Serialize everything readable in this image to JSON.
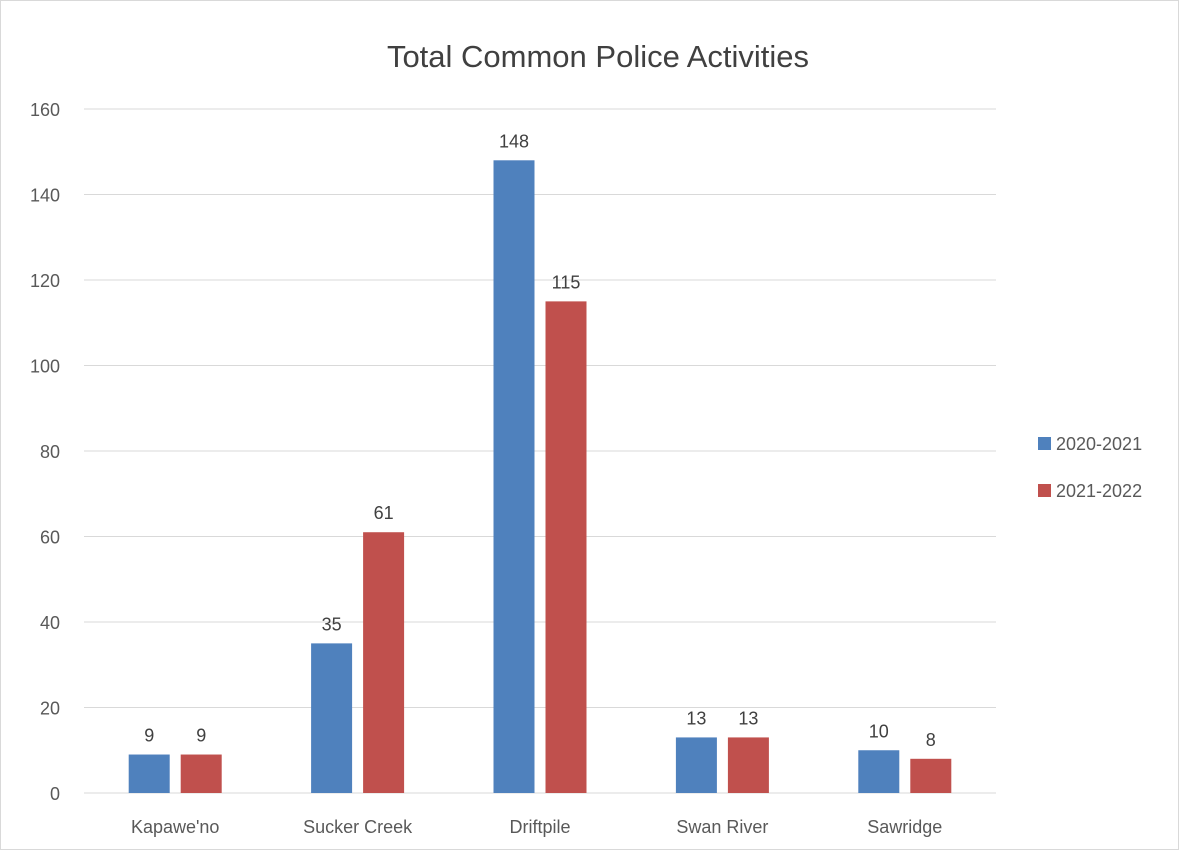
{
  "chart_data": {
    "type": "bar",
    "title": "Total Common Police Activities",
    "xlabel": "",
    "ylabel": "",
    "categories": [
      "Kapawe'no",
      "Sucker Creek",
      "Driftpile",
      "Swan River",
      "Sawridge"
    ],
    "series": [
      {
        "name": "2020-2021",
        "color": "#4f81bd",
        "values": [
          9,
          35,
          148,
          13,
          10
        ]
      },
      {
        "name": "2021-2022",
        "color": "#c0504d",
        "values": [
          9,
          61,
          115,
          13,
          8
        ]
      }
    ],
    "ylim": [
      0,
      160
    ],
    "yticks": [
      0,
      20,
      40,
      60,
      80,
      100,
      120,
      140,
      160
    ],
    "grid": true,
    "legend": "right"
  }
}
